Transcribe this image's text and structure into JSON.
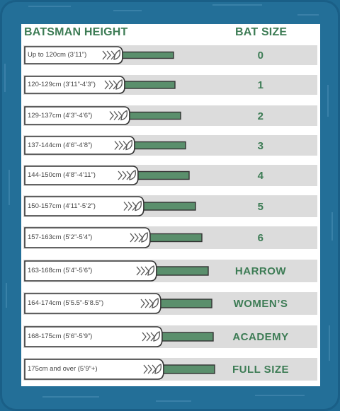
{
  "header": {
    "height_label": "BATSMAN HEIGHT",
    "size_label": "BAT SIZE"
  },
  "rows": [
    {
      "height": "Up to 120cm (3’11”)",
      "size": "0"
    },
    {
      "height": "120-129cm (3’11”-4’3”)",
      "size": "1"
    },
    {
      "height": "129-137cm (4’3”-4’6”)",
      "size": "2"
    },
    {
      "height": "137-144cm (4’6”-4’8”)",
      "size": "3"
    },
    {
      "height": "144-150cm (4’8”-4’11”)",
      "size": "4"
    },
    {
      "height": "150-157cm (4’11”-5’2”)",
      "size": "5"
    },
    {
      "height": "157-163cm (5’2”-5’4”)",
      "size": "6"
    },
    {
      "height": "163-168cm (5’4”-5’6”)",
      "size": "HARROW"
    },
    {
      "height": "164-174cm (5’5.5”-5’8.5”)",
      "size": "WOMEN’S"
    },
    {
      "height": "168-175cm (5’6”-5’9”)",
      "size": "ACADEMY"
    },
    {
      "height": "175cm and over (5’9”+)",
      "size": "FULL SIZE"
    }
  ],
  "colors": {
    "accent": "#3d7c55",
    "handle": "#5a8f6c",
    "background": "#236f98",
    "row": "#dcdcdc"
  },
  "icons": {
    "logo": "chevron-leaf-logo-icon"
  }
}
